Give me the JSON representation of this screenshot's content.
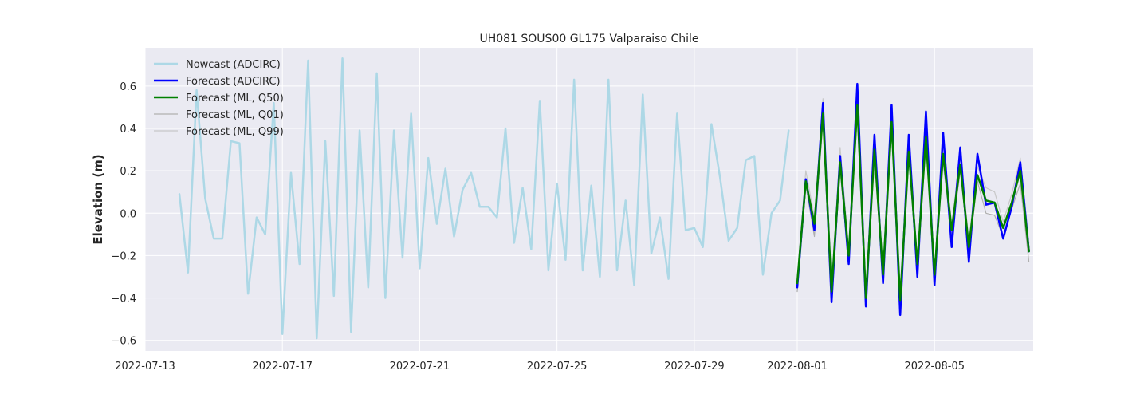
{
  "chart_data": {
    "type": "line",
    "title": "UH081 SOUS00 GL175 Valparaiso Chile",
    "xlabel": "",
    "ylabel": "Elevation (m)",
    "xlim": [
      "2022-07-13T00:00",
      "2022-08-07T21:00"
    ],
    "ylim": [
      -0.65,
      0.78
    ],
    "x_ticks": [
      "2022-07-13",
      "2022-07-17",
      "2022-07-21",
      "2022-07-25",
      "2022-07-29",
      "2022-08-01",
      "2022-08-05"
    ],
    "y_ticks": [
      -0.6,
      -0.4,
      -0.2,
      0.0,
      0.2,
      0.4,
      0.6
    ],
    "y_tick_labels": [
      "−0.6",
      "−0.4",
      "−0.2",
      "0.0",
      "0.2",
      "0.4",
      "0.6"
    ],
    "grid": true,
    "legend_position": "top-left",
    "series": [
      {
        "name": "Nowcast (ADCIRC)",
        "color": "#add8e6",
        "x": [
          "2022-07-14T00:00",
          "2022-07-14T06:00",
          "2022-07-14T12:00",
          "2022-07-14T18:00",
          "2022-07-15T00:00",
          "2022-07-15T06:00",
          "2022-07-15T12:00",
          "2022-07-15T18:00",
          "2022-07-16T00:00",
          "2022-07-16T06:00",
          "2022-07-16T12:00",
          "2022-07-16T18:00",
          "2022-07-17T00:00",
          "2022-07-17T06:00",
          "2022-07-17T12:00",
          "2022-07-17T18:00",
          "2022-07-18T00:00",
          "2022-07-18T06:00",
          "2022-07-18T12:00",
          "2022-07-18T18:00",
          "2022-07-19T00:00",
          "2022-07-19T06:00",
          "2022-07-19T12:00",
          "2022-07-19T18:00",
          "2022-07-20T00:00",
          "2022-07-20T06:00",
          "2022-07-20T12:00",
          "2022-07-20T18:00",
          "2022-07-21T00:00",
          "2022-07-21T06:00",
          "2022-07-21T12:00",
          "2022-07-21T18:00",
          "2022-07-22T00:00",
          "2022-07-22T06:00",
          "2022-07-22T12:00",
          "2022-07-22T18:00",
          "2022-07-23T00:00",
          "2022-07-23T06:00",
          "2022-07-23T12:00",
          "2022-07-23T18:00",
          "2022-07-24T00:00",
          "2022-07-24T06:00",
          "2022-07-24T12:00",
          "2022-07-24T18:00",
          "2022-07-25T00:00",
          "2022-07-25T06:00",
          "2022-07-25T12:00",
          "2022-07-25T18:00",
          "2022-07-26T00:00",
          "2022-07-26T06:00",
          "2022-07-26T12:00",
          "2022-07-26T18:00",
          "2022-07-27T00:00",
          "2022-07-27T06:00",
          "2022-07-27T12:00",
          "2022-07-27T18:00",
          "2022-07-28T00:00",
          "2022-07-28T06:00",
          "2022-07-28T12:00",
          "2022-07-28T18:00",
          "2022-07-29T00:00",
          "2022-07-29T06:00",
          "2022-07-29T12:00",
          "2022-07-29T18:00",
          "2022-07-30T00:00",
          "2022-07-30T06:00",
          "2022-07-30T12:00",
          "2022-07-30T18:00",
          "2022-07-31T00:00",
          "2022-07-31T06:00",
          "2022-07-31T12:00",
          "2022-07-31T18:00"
        ],
        "y": [
          0.09,
          -0.28,
          0.58,
          0.07,
          -0.12,
          -0.12,
          0.34,
          0.33,
          -0.38,
          -0.02,
          -0.1,
          0.52,
          -0.57,
          0.19,
          -0.24,
          0.72,
          -0.59,
          0.34,
          -0.39,
          0.73,
          -0.56,
          0.39,
          -0.35,
          0.66,
          -0.4,
          0.39,
          -0.21,
          0.47,
          -0.26,
          0.26,
          -0.05,
          0.21,
          -0.11,
          0.11,
          0.19,
          0.03,
          0.03,
          -0.02,
          0.4,
          -0.14,
          0.12,
          -0.17,
          0.53,
          -0.27,
          0.14,
          -0.22,
          0.63,
          -0.27,
          0.13,
          -0.3,
          0.63,
          -0.27,
          0.06,
          -0.34,
          0.56,
          -0.19,
          -0.02,
          -0.31,
          0.47,
          -0.08,
          -0.07,
          -0.16,
          0.42,
          0.17,
          -0.13,
          -0.07,
          0.25,
          0.27,
          -0.29,
          0.0,
          0.06,
          0.39
        ]
      },
      {
        "name": "Forecast (ADCIRC)",
        "color": "#0000ff",
        "x": [
          "2022-08-01T00:00",
          "2022-08-01T06:00",
          "2022-08-01T12:00",
          "2022-08-01T18:00",
          "2022-08-02T00:00",
          "2022-08-02T06:00",
          "2022-08-02T12:00",
          "2022-08-02T18:00",
          "2022-08-03T00:00",
          "2022-08-03T06:00",
          "2022-08-03T12:00",
          "2022-08-03T18:00",
          "2022-08-04T00:00",
          "2022-08-04T06:00",
          "2022-08-04T12:00",
          "2022-08-04T18:00",
          "2022-08-05T00:00",
          "2022-08-05T06:00",
          "2022-08-05T12:00",
          "2022-08-05T18:00",
          "2022-08-06T00:00",
          "2022-08-06T06:00",
          "2022-08-06T12:00",
          "2022-08-06T18:00",
          "2022-08-07T00:00",
          "2022-08-07T06:00",
          "2022-08-07T12:00",
          "2022-08-07T18:00"
        ],
        "y": [
          -0.35,
          0.16,
          -0.08,
          0.52,
          -0.42,
          0.27,
          -0.24,
          0.61,
          -0.44,
          0.37,
          -0.33,
          0.51,
          -0.48,
          0.37,
          -0.3,
          0.48,
          -0.34,
          0.38,
          -0.16,
          0.31,
          -0.23,
          0.28,
          0.04,
          0.05,
          -0.12,
          0.03,
          0.24,
          -0.18
        ]
      },
      {
        "name": "Forecast (ML, Q50)",
        "color": "#008000",
        "x": [
          "2022-08-01T00:00",
          "2022-08-01T06:00",
          "2022-08-01T12:00",
          "2022-08-01T18:00",
          "2022-08-02T00:00",
          "2022-08-02T06:00",
          "2022-08-02T12:00",
          "2022-08-02T18:00",
          "2022-08-03T00:00",
          "2022-08-03T06:00",
          "2022-08-03T12:00",
          "2022-08-03T18:00",
          "2022-08-04T00:00",
          "2022-08-04T06:00",
          "2022-08-04T12:00",
          "2022-08-04T18:00",
          "2022-08-05T00:00",
          "2022-08-05T06:00",
          "2022-08-05T12:00",
          "2022-08-05T18:00",
          "2022-08-06T00:00",
          "2022-08-06T06:00",
          "2022-08-06T12:00",
          "2022-08-06T18:00",
          "2022-08-07T00:00",
          "2022-08-07T06:00",
          "2022-08-07T12:00",
          "2022-08-07T18:00"
        ],
        "y": [
          -0.33,
          0.15,
          -0.05,
          0.47,
          -0.37,
          0.24,
          -0.2,
          0.51,
          -0.4,
          0.3,
          -0.29,
          0.43,
          -0.41,
          0.29,
          -0.24,
          0.36,
          -0.29,
          0.28,
          -0.08,
          0.23,
          -0.16,
          0.18,
          0.06,
          0.05,
          -0.07,
          0.05,
          0.2,
          -0.18
        ]
      },
      {
        "name": "Forecast (ML, Q01)",
        "color": "#b0b0b0",
        "x": [
          "2022-08-01T00:00",
          "2022-08-01T06:00",
          "2022-08-01T12:00",
          "2022-08-01T18:00",
          "2022-08-02T00:00",
          "2022-08-02T06:00",
          "2022-08-02T12:00",
          "2022-08-02T18:00",
          "2022-08-03T00:00",
          "2022-08-03T06:00",
          "2022-08-03T12:00",
          "2022-08-03T18:00",
          "2022-08-04T00:00",
          "2022-08-04T06:00",
          "2022-08-04T12:00",
          "2022-08-04T18:00",
          "2022-08-05T00:00",
          "2022-08-05T06:00",
          "2022-08-05T12:00",
          "2022-08-05T18:00",
          "2022-08-06T00:00",
          "2022-08-06T06:00",
          "2022-08-06T12:00",
          "2022-08-06T18:00",
          "2022-08-07T00:00",
          "2022-08-07T06:00",
          "2022-08-07T12:00",
          "2022-08-07T18:00"
        ],
        "y": [
          -0.37,
          0.13,
          -0.11,
          0.44,
          -0.4,
          0.2,
          -0.23,
          0.47,
          -0.43,
          0.26,
          -0.32,
          0.4,
          -0.44,
          0.26,
          -0.27,
          0.33,
          -0.31,
          0.24,
          -0.11,
          0.2,
          -0.18,
          0.15,
          0.0,
          -0.01,
          -0.11,
          0.02,
          0.14,
          -0.23
        ]
      },
      {
        "name": "Forecast (ML, Q99)",
        "color": "#c8c8c8",
        "x": [
          "2022-08-01T00:00",
          "2022-08-01T06:00",
          "2022-08-01T12:00",
          "2022-08-01T18:00",
          "2022-08-02T00:00",
          "2022-08-02T06:00",
          "2022-08-02T12:00",
          "2022-08-02T18:00",
          "2022-08-03T00:00",
          "2022-08-03T06:00",
          "2022-08-03T12:00",
          "2022-08-03T18:00",
          "2022-08-04T00:00",
          "2022-08-04T06:00",
          "2022-08-04T12:00",
          "2022-08-04T18:00",
          "2022-08-05T00:00",
          "2022-08-05T06:00",
          "2022-08-05T12:00",
          "2022-08-05T18:00",
          "2022-08-06T00:00",
          "2022-08-06T06:00",
          "2022-08-06T12:00",
          "2022-08-06T18:00",
          "2022-08-07T00:00",
          "2022-08-07T06:00",
          "2022-08-07T12:00",
          "2022-08-07T18:00"
        ],
        "y": [
          -0.3,
          0.2,
          -0.02,
          0.54,
          -0.34,
          0.31,
          -0.17,
          0.56,
          -0.37,
          0.35,
          -0.26,
          0.48,
          -0.38,
          0.33,
          -0.21,
          0.4,
          -0.26,
          0.33,
          -0.05,
          0.27,
          -0.13,
          0.22,
          0.12,
          0.1,
          -0.04,
          0.09,
          0.26,
          -0.14
        ]
      }
    ]
  }
}
